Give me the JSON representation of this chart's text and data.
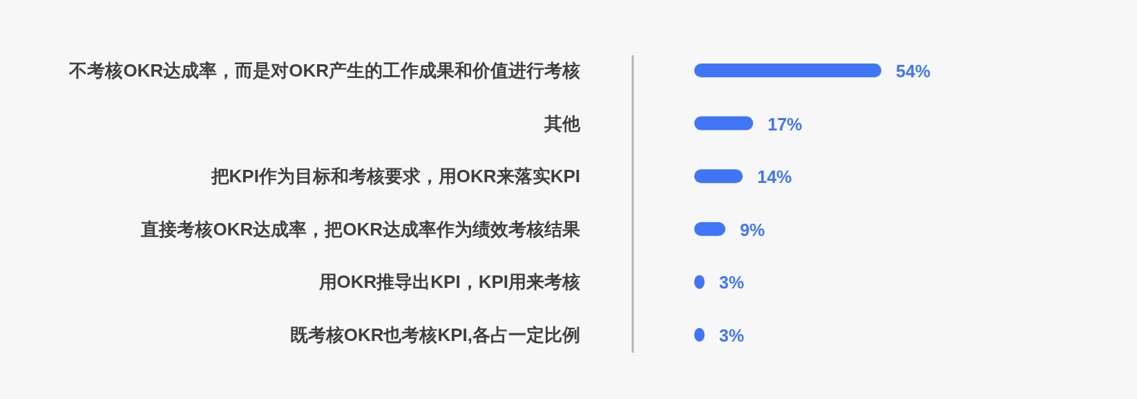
{
  "chart_data": {
    "type": "bar",
    "orientation": "horizontal",
    "categories": [
      "不考核OKR达成率，而是对OKR产生的工作成果和价值进行考核",
      "其他",
      "把KPI作为目标和考核要求，用OKR来落实KPI",
      "直接考核OKR达成率，把OKR达成率作为绩效考核结果",
      "用OKR推导出KPI，KPI用来考核",
      "既考核OKR也考核KPI,各占一定比例"
    ],
    "values": [
      54,
      17,
      14,
      9,
      3,
      3
    ],
    "value_labels": [
      "54%",
      "17%",
      "14%",
      "9%",
      "3%",
      "3%"
    ],
    "color": "#4076f6"
  }
}
